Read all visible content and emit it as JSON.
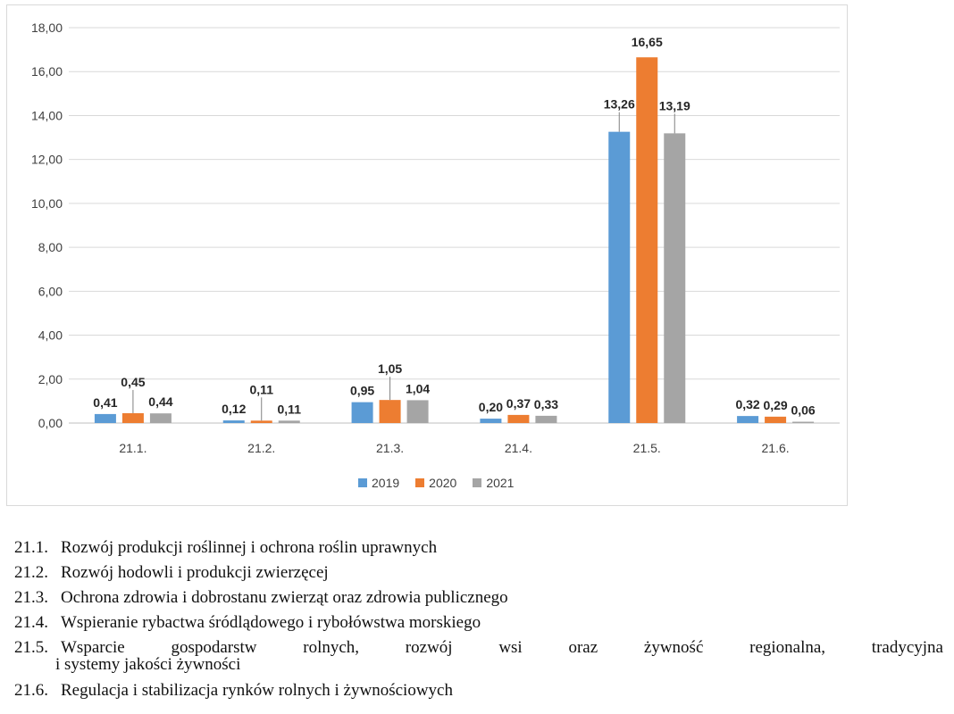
{
  "chart_data": {
    "type": "bar",
    "categories": [
      "21.1.",
      "21.2.",
      "21.3.",
      "21.4.",
      "21.5.",
      "21.6."
    ],
    "series": [
      {
        "name": "2019",
        "values": [
          0.41,
          0.12,
          0.95,
          0.2,
          13.26,
          0.32
        ],
        "labels": [
          "0,41",
          "0,12",
          "0,95",
          "0,20",
          "13,26",
          "0,32"
        ],
        "color": "#5b9bd5"
      },
      {
        "name": "2020",
        "values": [
          0.45,
          0.11,
          1.05,
          0.37,
          16.65,
          0.29
        ],
        "labels": [
          "0,45",
          "0,11",
          "1,05",
          "0,37",
          "16,65",
          "0,29"
        ],
        "color": "#ed7d31"
      },
      {
        "name": "2021",
        "values": [
          0.44,
          0.11,
          1.04,
          0.33,
          13.19,
          0.06
        ],
        "labels": [
          "0,44",
          "0,11",
          "1,04",
          "0,33",
          "13,19",
          "0,06"
        ],
        "color": "#a5a5a5"
      }
    ],
    "ylim": [
      0,
      18
    ],
    "yticks": [
      0,
      2,
      4,
      6,
      8,
      10,
      12,
      14,
      16,
      18
    ],
    "ytick_labels": [
      "0,00",
      "2,00",
      "4,00",
      "6,00",
      "8,00",
      "10,00",
      "12,00",
      "14,00",
      "16,00",
      "18,00"
    ],
    "grid": true,
    "legend_position": "bottom",
    "title": "",
    "xlabel": "",
    "ylabel": ""
  },
  "legend": {
    "items": [
      {
        "label": "2019",
        "color": "#5b9bd5"
      },
      {
        "label": "2020",
        "color": "#ed7d31"
      },
      {
        "label": "2021",
        "color": "#a5a5a5"
      }
    ]
  },
  "notes": [
    {
      "code": "21.1.",
      "text": "Rozwój produkcji roślinnej i ochrona roślin uprawnych"
    },
    {
      "code": "21.2.",
      "text": "Rozwój hodowli i produkcji zwierzęcej"
    },
    {
      "code": "21.3.",
      "text": "Ochrona zdrowia i dobrostanu zwierząt oraz zdrowia publicznego"
    },
    {
      "code": "21.4.",
      "text": "Wspieranie rybactwa śródlądowego i rybołówstwa morskiego"
    },
    {
      "code": "21.5.",
      "text": "Wsparcie gospodarstw rolnych, rozwój wsi oraz żywność regionalna, tradycyjna",
      "continuation": "i systemy jakości żywności"
    },
    {
      "code": "21.6.",
      "text": "Regulacja i stabilizacja rynków rolnych i żywnościowych"
    }
  ]
}
